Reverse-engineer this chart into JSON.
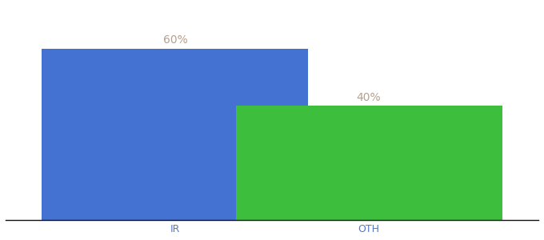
{
  "categories": [
    "IR",
    "OTH"
  ],
  "values": [
    60,
    40
  ],
  "bar_colors": [
    "#4472d3",
    "#3dbf3d"
  ],
  "label_color": "#b5a090",
  "label_fontsize": 10,
  "tick_fontsize": 9,
  "tick_color": "#5577cc",
  "background_color": "#ffffff",
  "bar_width": 0.55,
  "ylim": [
    0,
    75
  ],
  "annotations": [
    "60%",
    "40%"
  ]
}
